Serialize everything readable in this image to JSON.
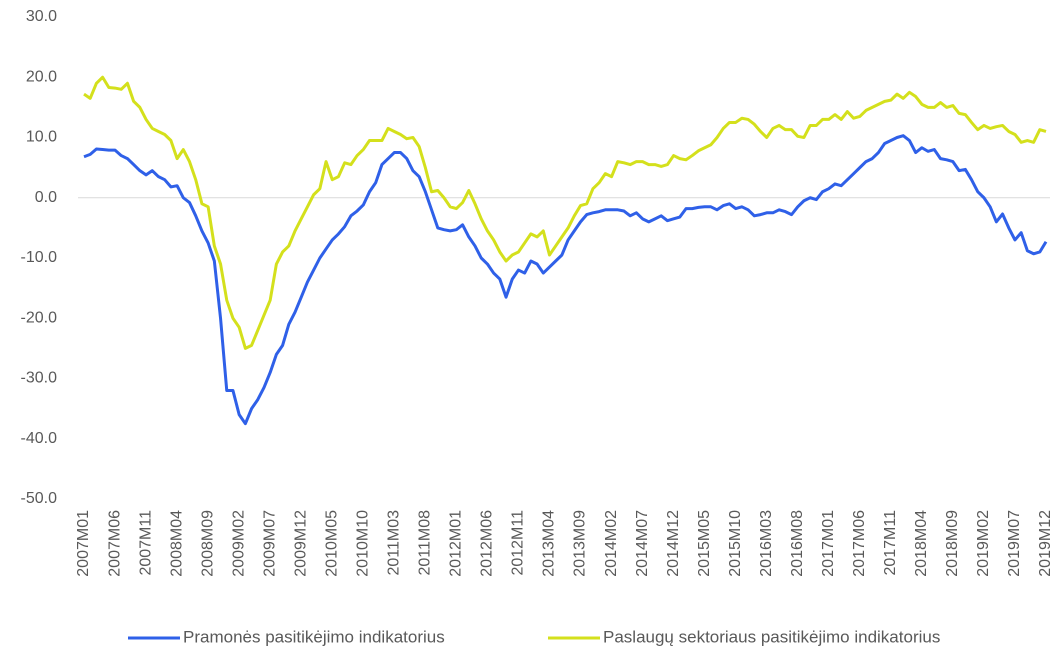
{
  "chart_data": {
    "type": "line",
    "categories": [
      "2007M01",
      null,
      null,
      null,
      null,
      "2007M06",
      null,
      null,
      null,
      null,
      "2007M11",
      null,
      null,
      null,
      null,
      "2008M04",
      null,
      null,
      null,
      null,
      "2008M09",
      null,
      null,
      null,
      null,
      "2009M02",
      null,
      null,
      null,
      null,
      "2009M07",
      null,
      null,
      null,
      null,
      "2009M12",
      null,
      null,
      null,
      null,
      "2010M05",
      null,
      null,
      null,
      null,
      "2010M10",
      null,
      null,
      null,
      null,
      "2011M03",
      null,
      null,
      null,
      null,
      "2011M08",
      null,
      null,
      null,
      null,
      "2012M01",
      null,
      null,
      null,
      null,
      "2012M06",
      null,
      null,
      null,
      null,
      "2012M11",
      null,
      null,
      null,
      null,
      "2013M04",
      null,
      null,
      null,
      null,
      "2013M09",
      null,
      null,
      null,
      null,
      "2014M02",
      null,
      null,
      null,
      null,
      "2014M07",
      null,
      null,
      null,
      null,
      "2014M12",
      null,
      null,
      null,
      null,
      "2015M05",
      null,
      null,
      null,
      null,
      "2015M10",
      null,
      null,
      null,
      null,
      "2016M03",
      null,
      null,
      null,
      null,
      "2016M08",
      null,
      null,
      null,
      null,
      "2017M01",
      null,
      null,
      null,
      null,
      "2017M06",
      null,
      null,
      null,
      null,
      "2017M11",
      null,
      null,
      null,
      null,
      "2018M04",
      null,
      null,
      null,
      null,
      "2018M09",
      null,
      null,
      null,
      null,
      "2019M02",
      null,
      null,
      null,
      null,
      "2019M07",
      null,
      null,
      null,
      null,
      "2019M12"
    ],
    "series": [
      {
        "name": "Pramonės pasitikėjimo indikatorius",
        "color": "#2f60e8",
        "values": [
          6.8,
          7.2,
          8.1,
          8,
          7.9,
          7.9,
          7,
          6.5,
          5.5,
          4.5,
          3.8,
          4.5,
          3.5,
          3,
          1.8,
          2,
          0,
          -0.8,
          -3,
          -5.5,
          -7.5,
          -10.5,
          -20,
          -32,
          -32,
          -36,
          -37.5,
          -35,
          -33.5,
          -31.5,
          -29,
          -26,
          -24.5,
          -21,
          -19,
          -16.5,
          -14,
          -12,
          -10,
          -8.5,
          -7,
          -6,
          -4.8,
          -3,
          -2.2,
          -1.2,
          1,
          2.5,
          5.5,
          6.5,
          7.5,
          7.5,
          6.5,
          4.5,
          3.5,
          1,
          -2,
          -5,
          -5.3,
          -5.5,
          -5.3,
          -4.5,
          -6.5,
          -8,
          -10,
          -11,
          -12.5,
          -13.5,
          -16.5,
          -13.5,
          -12,
          -12.5,
          -10.5,
          -11,
          -12.5,
          -11.5,
          -10.5,
          -9.5,
          -7,
          -5.5,
          -4,
          -2.8,
          -2.5,
          -2.3,
          -2,
          -2,
          -2,
          -2.2,
          -3,
          -2.5,
          -3.5,
          -4,
          -3.5,
          -3,
          -3.8,
          -3.5,
          -3.2,
          -1.8,
          -1.8,
          -1.6,
          -1.5,
          -1.5,
          -2,
          -1.3,
          -1,
          -1.8,
          -1.5,
          -2,
          -3,
          -2.8,
          -2.5,
          -2.5,
          -2,
          -2.3,
          -2.8,
          -1.5,
          -0.5,
          0,
          -0.3,
          1,
          1.5,
          2.3,
          2,
          3,
          4,
          5,
          6,
          6.5,
          7.5,
          9,
          9.5,
          10,
          10.3,
          9.5,
          7.5,
          8.3,
          7.7,
          8,
          6.5,
          6.3,
          6,
          4.5,
          4.7,
          3,
          1,
          0,
          -1.5,
          -4,
          -2.7,
          -5,
          -7,
          -5.8,
          -8.8,
          -9.3,
          -9,
          -7.3
        ]
      },
      {
        "name": "Paslaugų sektoriaus pasitikėjimo indikatorius",
        "color": "#d4e01c",
        "values": [
          17.2,
          16.5,
          19,
          20,
          18.3,
          18.2,
          18,
          19,
          16,
          15,
          13,
          11.5,
          11,
          10.5,
          9.5,
          6.5,
          8,
          6,
          3,
          -1,
          -1.5,
          -8,
          -11,
          -17,
          -20,
          -21.5,
          -25,
          -24.5,
          -22,
          -19.5,
          -17,
          -11,
          -9,
          -8,
          -5.5,
          -3.5,
          -1.5,
          0.5,
          1.5,
          6,
          3,
          3.5,
          5.8,
          5.5,
          7,
          8,
          9.5,
          9.5,
          9.5,
          11.5,
          11,
          10.5,
          9.8,
          10,
          8.5,
          5,
          1,
          1.2,
          0,
          -1.5,
          -1.8,
          -0.8,
          1.2,
          -1,
          -3.5,
          -5.5,
          -7,
          -9,
          -10.5,
          -9.5,
          -9,
          -7.5,
          -6,
          -6.5,
          -5.5,
          -9.5,
          -8,
          -6.5,
          -5,
          -3,
          -1.3,
          -1,
          1.5,
          2.5,
          4,
          3.5,
          6,
          5.8,
          5.5,
          6,
          6,
          5.5,
          5.5,
          5.2,
          5.5,
          7,
          6.5,
          6.3,
          7,
          7.8,
          8.3,
          8.8,
          10,
          11.5,
          12.5,
          12.5,
          13.2,
          13,
          12.2,
          11,
          10,
          11.5,
          12,
          11.3,
          11.3,
          10.2,
          10,
          12,
          12,
          13,
          13,
          13.8,
          13,
          14.3,
          13.2,
          13.5,
          14.5,
          15,
          15.5,
          16,
          16.2,
          17.2,
          16.5,
          17.5,
          16.8,
          15.5,
          15,
          15,
          15.8,
          15,
          15.3,
          14,
          13.8,
          12.5,
          11.3,
          12,
          11.5,
          11.8,
          12,
          11,
          10.5,
          9.2,
          9.5,
          9.2,
          11.3,
          11
        ]
      }
    ],
    "ylim": [
      -50,
      30
    ],
    "yticks": [
      {
        "value": 30,
        "label": "30.0"
      },
      {
        "value": 20,
        "label": "20.0"
      },
      {
        "value": 10,
        "label": "10.0"
      },
      {
        "value": 0,
        "label": "0.0"
      },
      {
        "value": -10,
        "label": "-10.0"
      },
      {
        "value": -20,
        "label": "-20.0"
      },
      {
        "value": -30,
        "label": "-30.0"
      },
      {
        "value": -40,
        "label": "-40.0"
      },
      {
        "value": -50,
        "label": "-50.0"
      }
    ],
    "grid": false
  }
}
